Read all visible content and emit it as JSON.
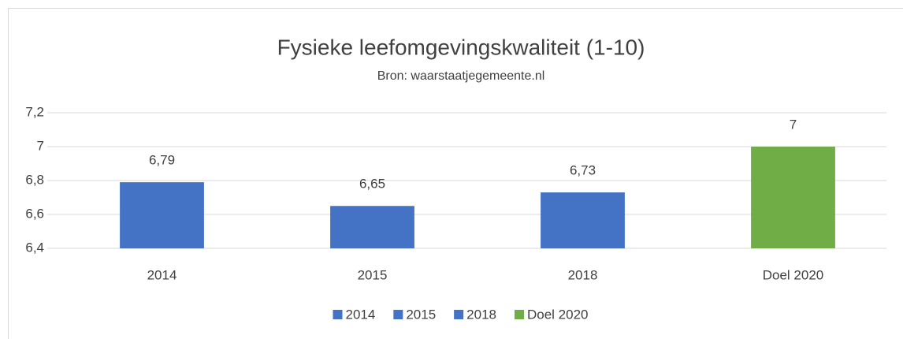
{
  "chart_data": {
    "type": "bar",
    "title": "Fysieke leefomgevingskwaliteit (1-10)",
    "subtitle": "Bron: waarstaatjegemeente.nl",
    "categories": [
      "2014",
      "2015",
      "2018",
      "Doel 2020"
    ],
    "values": [
      6.79,
      6.65,
      6.73,
      7
    ],
    "value_labels": [
      "6,79",
      "6,65",
      "6,73",
      "7"
    ],
    "colors": [
      "#4472c4",
      "#4472c4",
      "#4472c4",
      "#70ad47"
    ],
    "ylim": [
      6.4,
      7.2
    ],
    "yticks": [
      {
        "value": 6.4,
        "label": "6,4"
      },
      {
        "value": 6.6,
        "label": "6,6"
      },
      {
        "value": 6.8,
        "label": "6,8"
      },
      7,
      {
        "value": 7.2,
        "label": "7,2"
      }
    ],
    "grid": true,
    "legend": "bottom"
  }
}
